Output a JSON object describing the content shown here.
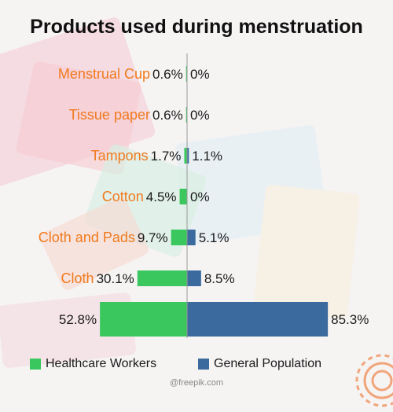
{
  "title": "Products used during menstruation",
  "credit": "@freepik.com",
  "colors": {
    "healthcare": "#3ac85e",
    "general": "#3a6a9e",
    "category": "#f07a1e"
  },
  "legend": {
    "healthcare_label": "Healthcare Workers",
    "general_label": "General Population"
  },
  "chart_data": {
    "type": "bar",
    "orientation": "horizontal-diverging",
    "title": "Products used during menstruation",
    "categories": [
      "Menstrual Cup",
      "Tissue paper",
      "Tampons",
      "Cotton",
      "Cloth and Pads",
      "Cloth",
      ""
    ],
    "series": [
      {
        "name": "Healthcare Workers",
        "values": [
          0.6,
          0.6,
          1.7,
          4.5,
          9.7,
          30.1,
          52.8
        ],
        "labels": [
          "0.6%",
          "0.6%",
          "1.7%",
          "4.5%",
          "9.7%",
          "30.1%",
          "52.8%"
        ]
      },
      {
        "name": "General Population",
        "values": [
          0,
          0,
          1.1,
          0,
          5.1,
          8.5,
          85.3
        ],
        "labels": [
          "0%",
          "0%",
          "1.1%",
          "0%",
          "5.1%",
          "8.5%",
          "85.3%"
        ]
      }
    ],
    "legend_position": "bottom"
  }
}
